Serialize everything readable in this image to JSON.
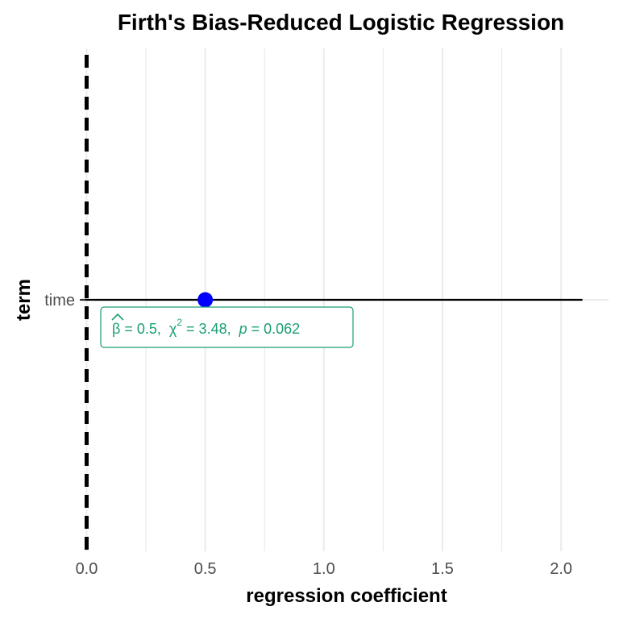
{
  "chart_data": {
    "type": "scatter",
    "title": "Firth's Bias-Reduced Logistic Regression",
    "xlabel": "regression coefficient",
    "ylabel": "term",
    "xlim": [
      -0.005,
      2.2
    ],
    "x_ticks": [
      0.0,
      0.5,
      1.0,
      1.5,
      2.0
    ],
    "x_tick_labels": [
      "0.0",
      "0.5",
      "1.0",
      "1.5",
      "2.0"
    ],
    "categories": [
      "time"
    ],
    "series": [
      {
        "estimate": [
          0.5
        ],
        "conf_low": [
          -0.02
        ],
        "conf_high": [
          2.09
        ],
        "color": "#0000ff"
      }
    ],
    "reference_line": {
      "x": 0,
      "style": "dashed",
      "color": "#000000"
    },
    "annotations": [
      {
        "term": "time",
        "beta_symbol": "β",
        "beta_value": " = 0.5,",
        "chi_symbol": "χ",
        "chi_sup": "2",
        "chi_value": " = 3.48,",
        "p_symbol": "p",
        "p_value": " = 0.062",
        "color": "#1b9e77"
      }
    ],
    "grid": true,
    "grid_color": "#ebebeb",
    "legend": "none"
  }
}
